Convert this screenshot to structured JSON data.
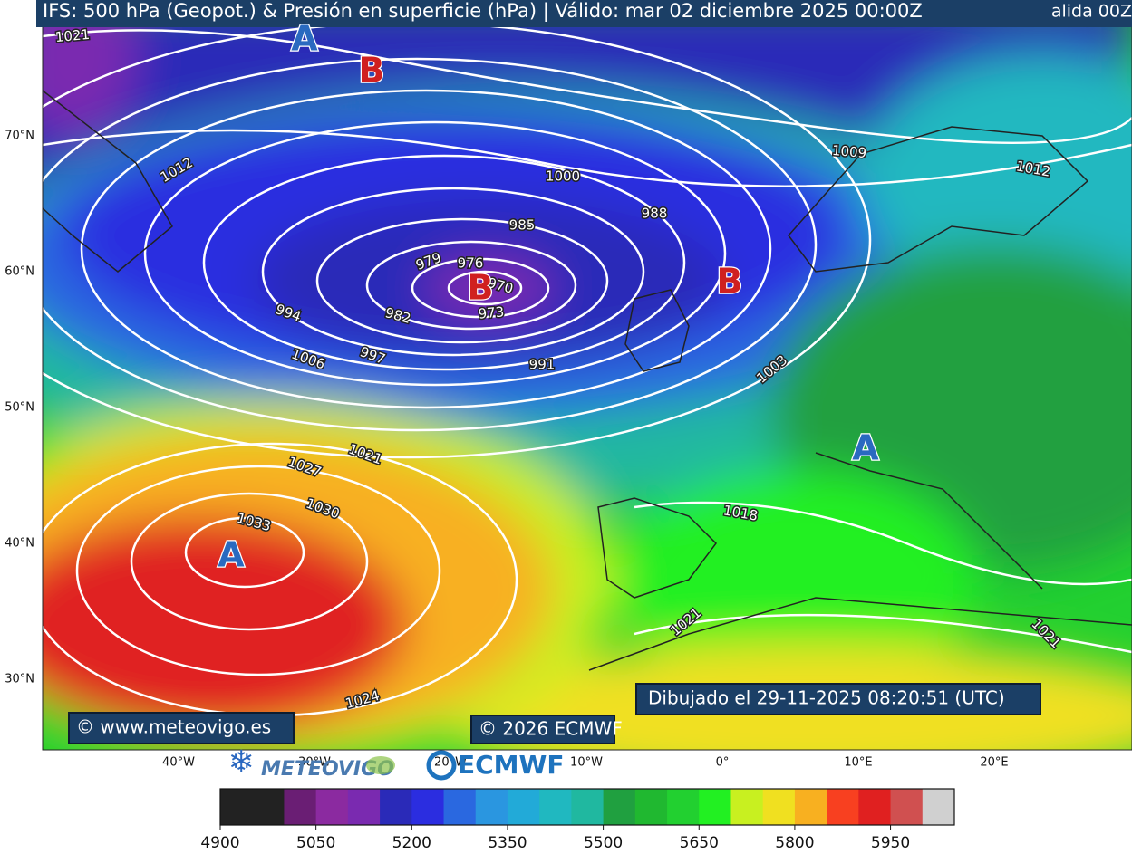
{
  "header": {
    "title": "IFS: 500 hPa (Geopot.) & Presión en superficie (hPa)  |  Válido: mar 02 diciembre 2025 00:00Z",
    "overflow": "alida 00Z"
  },
  "latitude_labels": [
    "70°N",
    "60°N",
    "50°N",
    "40°N",
    "30°N"
  ],
  "longitude_labels": [
    "40°W",
    "30°W",
    "20°W",
    "10°W",
    "0°",
    "10°E",
    "20°E"
  ],
  "isobar_labels": [
    "1021",
    "1012",
    "1009",
    "1000",
    "1012",
    "988",
    "985",
    "979",
    "976",
    "970",
    "982",
    "973",
    "994",
    "997",
    "991",
    "1006",
    "1003",
    "1021",
    "1027",
    "1030",
    "1033",
    "1018",
    "1021",
    "1021",
    "1024"
  ],
  "pressure_centers": [
    "A",
    "B",
    "B",
    "B",
    "A",
    "A"
  ],
  "credits": {
    "site": "© www.meteovigo.es",
    "copyright": "© 2026 ECMWF",
    "drawn": "Dibujado el 29-11-2025 08:20:51 (UTC)"
  },
  "logos": {
    "meteovigo": "METEOVIGO",
    "ecmwf": "ECMWF"
  },
  "colorbar": {
    "range": [
      4900,
      6050
    ],
    "colors": [
      "#222222",
      "#222222",
      "#6a1e74",
      "#8b2aa0",
      "#7a2ab0",
      "#2a2ab8",
      "#2b2de0",
      "#2a68e0",
      "#2a96e0",
      "#22aad8",
      "#20b8c0",
      "#20b8a0",
      "#20a040",
      "#20b830",
      "#22d030",
      "#22f022",
      "#c8f020",
      "#f0e020",
      "#f8b020",
      "#f84020",
      "#e02020",
      "#d05050",
      "#d0d0d0"
    ],
    "ticks": [
      4900,
      5050,
      5200,
      5350,
      5500,
      5650,
      5800,
      5950
    ]
  }
}
